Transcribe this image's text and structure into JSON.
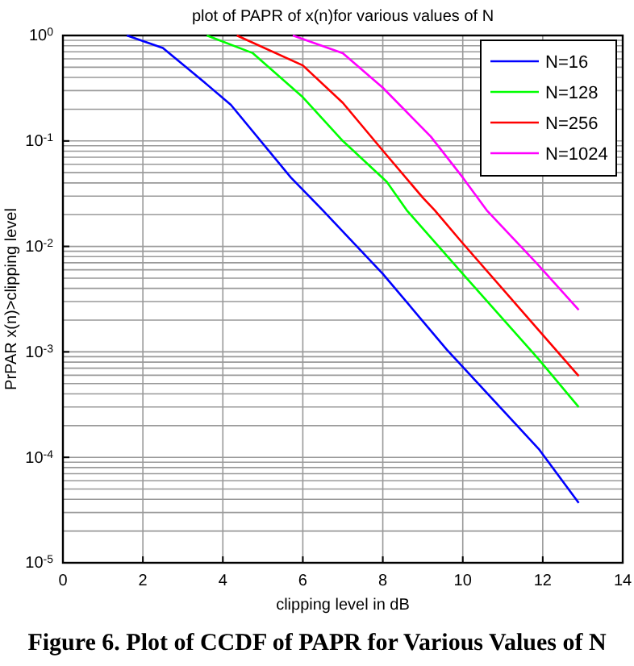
{
  "chart_data": {
    "type": "line",
    "title": "plot of PAPR of x(n)for various values of N",
    "xlabel": "clipping level in dB",
    "ylabel": "PrPAR x(n)>clipping level",
    "annotations": [
      "Figure 6. Plot of CCDF of PAPR for Various Values of N"
    ],
    "log": "y",
    "grid": true,
    "legend": "top right",
    "xlim": [
      0,
      14
    ],
    "xticks": [
      0,
      2,
      4,
      6,
      8,
      10,
      12,
      14
    ],
    "ylim": [
      1e-05,
      1
    ],
    "yticks": [
      {
        "value": 1e-05,
        "label": "10$^{-5}$"
      },
      {
        "value": 0.0001,
        "label": "10$^{-4}$"
      },
      {
        "value": 0.001,
        "label": "10$^{-3}$"
      },
      {
        "value": 0.01,
        "label": "10$^{-2}$"
      },
      {
        "value": 0.1,
        "label": "10$^{-1}$"
      },
      {
        "value": 1,
        "label": "10$^{0}$"
      }
    ],
    "series": [
      {
        "name": "N=16",
        "color": "#0000ff",
        "x": [
          1.6,
          2.5,
          3.5,
          4.2,
          5.7,
          6.5,
          8,
          9.6,
          11.9,
          12.9
        ],
        "values": [
          1,
          0.76,
          0.37,
          0.22,
          0.045,
          0.022,
          0.0055,
          0.00105,
          0.00012,
          3.7e-05
        ]
      },
      {
        "name": "N=128",
        "color": "#00ff00",
        "x": [
          3.6,
          4.75,
          6,
          7,
          8.1,
          8.6,
          10,
          11.9,
          12.9
        ],
        "values": [
          1,
          0.68,
          0.26,
          0.1,
          0.041,
          0.022,
          0.0055,
          0.00085,
          0.0003
        ]
      },
      {
        "name": "N=256",
        "color": "#ff0000",
        "x": [
          4.35,
          6,
          7,
          8,
          9,
          9.3,
          10,
          11.9,
          12.9
        ],
        "values": [
          1,
          0.52,
          0.23,
          0.081,
          0.029,
          0.022,
          0.0107,
          0.0016,
          0.00059
        ]
      },
      {
        "name": "N=1024",
        "color": "#ff00ff",
        "x": [
          5.75,
          7,
          8,
          9.2,
          10,
          10.6,
          11.85,
          12.9
        ],
        "values": [
          1,
          0.68,
          0.32,
          0.11,
          0.045,
          0.022,
          0.0069,
          0.0025
        ]
      }
    ]
  }
}
